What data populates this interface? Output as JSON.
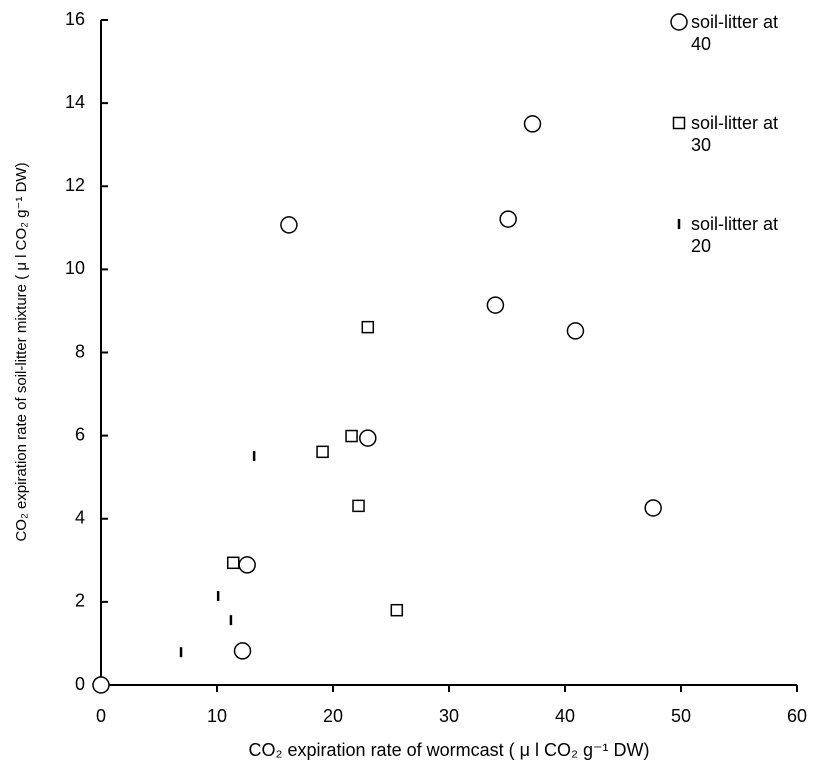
{
  "chart_data": {
    "type": "scatter",
    "xlabel": "CO₂ expiration rate of wormcast ( μ l CO₂ g⁻¹ DW)",
    "ylabel": "CO₂ expiration rate of soil-litter mixture ( μ l  CO₂ g⁻¹ DW)",
    "xlim": [
      0,
      60
    ],
    "xticks": [
      0,
      10,
      20,
      30,
      40,
      50,
      60
    ],
    "ylim": [
      0,
      16
    ],
    "yticks": [
      0,
      2,
      4,
      6,
      8,
      10,
      12,
      14,
      16
    ],
    "grid": false,
    "legend": "upper right",
    "series": [
      {
        "name": "soil-litter at 40",
        "marker": "circle",
        "color": "#000000",
        "x": [
          0,
          12.2,
          12.6,
          16.2,
          23.0,
          34.0,
          35.1,
          37.2,
          40.9,
          47.6
        ],
        "values": [
          0,
          0.82,
          2.89,
          11.07,
          5.94,
          9.14,
          11.21,
          13.5,
          8.52,
          4.26
        ]
      },
      {
        "name": "soil-litter at 30",
        "marker": "square",
        "color": "#000000",
        "x": [
          11.4,
          19.1,
          21.6,
          22.2,
          23.0,
          25.5
        ],
        "values": [
          2.94,
          5.61,
          5.99,
          4.31,
          8.61,
          1.8
        ]
      },
      {
        "name": "soil-litter at 20",
        "marker": "dash",
        "color": "#000000",
        "x": [
          6.9,
          10.1,
          11.2,
          13.2
        ],
        "values": [
          0.79,
          2.14,
          1.56,
          5.51
        ]
      }
    ]
  }
}
